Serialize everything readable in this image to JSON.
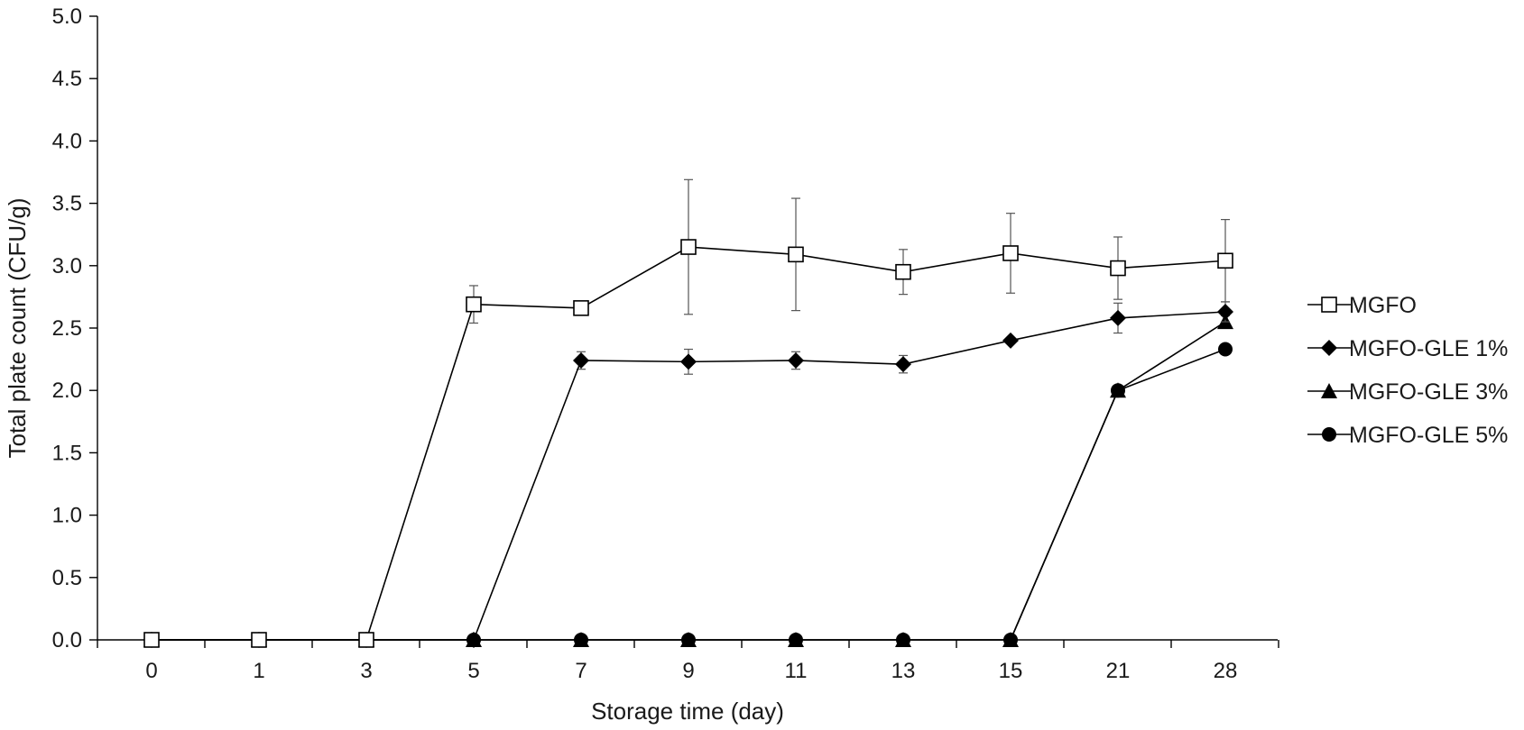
{
  "chart_data": {
    "type": "line",
    "title": "",
    "xlabel": "Storage time (day)",
    "ylabel": "Total plate count (CFU/g)",
    "categories": [
      "0",
      "1",
      "3",
      "5",
      "7",
      "9",
      "11",
      "13",
      "15",
      "21",
      "28"
    ],
    "ylim": [
      0,
      5
    ],
    "yticks": [
      "0.0",
      "0.5",
      "1.0",
      "1.5",
      "2.0",
      "2.5",
      "3.0",
      "3.5",
      "4.0",
      "4.5",
      "5.0"
    ],
    "grid": false,
    "legend_position": "right",
    "series": [
      {
        "name": "MGFO",
        "marker": "open-square",
        "values": [
          0,
          0,
          0,
          2.69,
          2.66,
          3.15,
          3.09,
          2.95,
          3.1,
          2.98,
          3.04
        ],
        "errors": [
          0,
          0,
          0,
          0.15,
          0.05,
          0.54,
          0.45,
          0.18,
          0.32,
          0.25,
          0.33
        ]
      },
      {
        "name": "MGFO-GLE 1%",
        "marker": "diamond",
        "values": [
          0,
          0,
          0,
          0,
          2.24,
          2.23,
          2.24,
          2.21,
          2.4,
          2.58,
          2.63
        ],
        "errors": [
          0,
          0,
          0,
          0,
          0.07,
          0.1,
          0.07,
          0.07,
          0,
          0.12,
          0.08
        ]
      },
      {
        "name": "MGFO-GLE 3%",
        "marker": "triangle",
        "values": [
          0,
          0,
          0,
          0,
          0,
          0,
          0,
          0,
          0,
          2.0,
          2.55
        ],
        "errors": [
          0,
          0,
          0,
          0,
          0,
          0,
          0,
          0,
          0,
          0,
          0.05
        ]
      },
      {
        "name": "MGFO-GLE 5%",
        "marker": "circle",
        "values": [
          0,
          0,
          0,
          0,
          0,
          0,
          0,
          0,
          0,
          2.0,
          2.33
        ],
        "errors": [
          0,
          0,
          0,
          0,
          0,
          0,
          0,
          0,
          0,
          0,
          0
        ]
      }
    ]
  }
}
